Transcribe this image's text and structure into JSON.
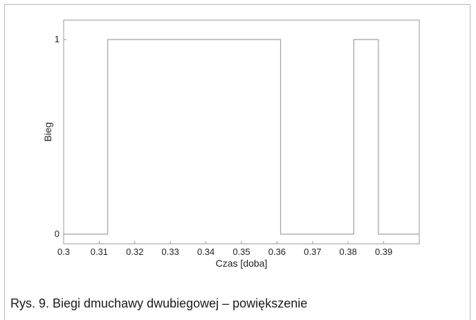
{
  "chart_data": {
    "type": "line",
    "step": true,
    "xlabel": "Czas [doba]",
    "ylabel": "Bieg",
    "xlim": [
      0.3,
      0.4
    ],
    "ylim": [
      -0.05,
      1.1
    ],
    "x_ticks": [
      0.3,
      0.31,
      0.32,
      0.33,
      0.34,
      0.35,
      0.36,
      0.37,
      0.38,
      0.39
    ],
    "x_tick_labels": [
      "0.3",
      "0.31",
      "0.32",
      "0.33",
      "0.34",
      "0.35",
      "0.36",
      "0.37",
      "0.38",
      "0.39"
    ],
    "y_ticks": [
      0,
      1
    ],
    "y_tick_labels": [
      "0",
      "1"
    ],
    "grid": false,
    "series": [
      {
        "color": "#a0a0a0",
        "x": [
          0.3,
          0.3124,
          0.3124,
          0.361,
          0.361,
          0.3816,
          0.3816,
          0.3885,
          0.3885,
          0.4
        ],
        "y": [
          0,
          0,
          1,
          1,
          0,
          0,
          1,
          1,
          0,
          0
        ]
      }
    ]
  },
  "caption": "Rys. 9. Biegi dmuchawy dwubiegowej – powiększenie"
}
